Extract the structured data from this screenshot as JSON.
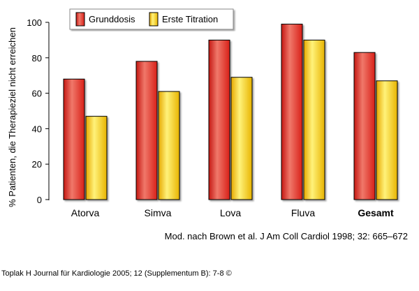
{
  "chart_data": {
    "type": "bar",
    "categories": [
      "Atorva",
      "Simva",
      "Lova",
      "Fluva",
      "Gesamt"
    ],
    "bold_categories": [
      "Gesamt"
    ],
    "series": [
      {
        "name": "Grunddosis",
        "values": [
          68,
          78,
          90,
          99,
          83
        ]
      },
      {
        "name": "Erste Titration",
        "values": [
          47,
          61,
          69,
          90,
          67
        ]
      }
    ],
    "ylabel": "% Patienten, die Therapieziel nicht erreichen",
    "xlabel": "",
    "ylim": [
      0,
      100
    ],
    "yticks": [
      0,
      20,
      40,
      60,
      80,
      100
    ],
    "grid": false,
    "legend_position": "top-left",
    "colors": {
      "Grunddosis": "#e8281e",
      "Erste Titration": "#f5c400"
    }
  },
  "source_note": "Mod. nach Brown et al. J Am Coll Cardiol 1998; 32: 665–672",
  "citation": "Toplak H Journal für Kardiologie 2005; 12 (Supplementum B): 7-8 ©"
}
